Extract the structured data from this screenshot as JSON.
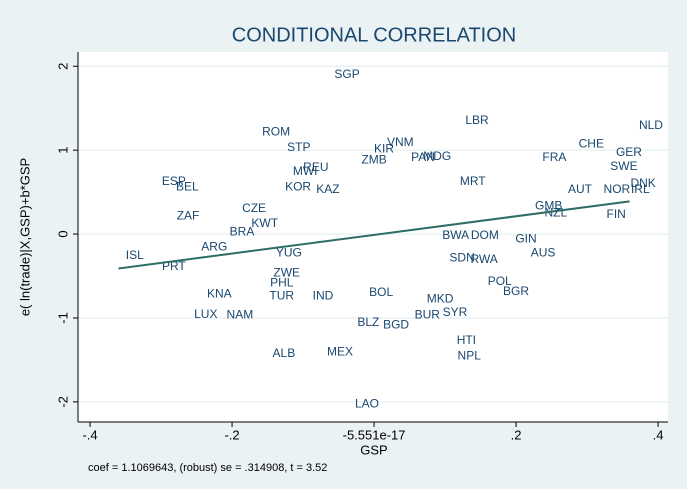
{
  "chart_data": {
    "type": "scatter",
    "title": "CONDITIONAL CORRELATION",
    "x_label": "GSP",
    "y_label": "e( ln(trade)|X,GSP)+b*GSP",
    "note": "coef = 1.1069643, (robust) se = .314908, t = 3.52",
    "xlim": [
      -0.417,
      0.414
    ],
    "ylim": [
      -2.24,
      2.17
    ],
    "xticks": [
      {
        "value": -0.4,
        "label": "-.4"
      },
      {
        "value": -0.2,
        "label": "-.2"
      },
      {
        "value": -5.551e-17,
        "label": "-5.551e-17"
      },
      {
        "value": 0.2,
        "label": ".2"
      },
      {
        "value": 0.4,
        "label": ".4"
      }
    ],
    "yticks": [
      2,
      1,
      0,
      -1,
      -2
    ],
    "grid": true,
    "color": "#1a476f",
    "labels": [
      "SGP",
      "LBR",
      "NLD",
      "ROM",
      "VNM",
      "CHE",
      "STP",
      "KIR",
      "GER",
      "PAN",
      "MDG",
      "FRA",
      "ZMB",
      "REU",
      "MWI",
      "SWE",
      "ESP",
      "BEL",
      "KOR",
      "KAZ",
      "MRT",
      "AUT",
      "NOR",
      "IRL",
      "DNK",
      "GMB",
      "NZL",
      "FIN",
      "CZE",
      "ZAF",
      "KWT",
      "BRA",
      "GIN",
      "ARG",
      "AUS",
      "ISL",
      "PRT",
      "YUG",
      "ZWE",
      "PHL",
      "IND",
      "KNA",
      "TUR",
      "LUX",
      "NAM",
      "BOL",
      "BGR",
      "MKD",
      "BUR",
      "SYR",
      "BLZ",
      "BGD",
      "HTI",
      "NPL",
      "ALB",
      "MEX",
      "LAO",
      "POL",
      "SDN",
      "RWA",
      "BWA",
      "DOM"
    ],
    "x": [
      -0.038,
      0.145,
      0.39,
      -0.138,
      0.037,
      0.306,
      -0.106,
      0.014,
      0.359,
      0.069,
      0.089,
      0.254,
      0.0,
      -0.082,
      -0.097,
      0.352,
      -0.282,
      -0.263,
      -0.107,
      -0.065,
      0.139,
      0.29,
      0.342,
      0.375,
      0.379,
      0.246,
      0.256,
      0.341,
      -0.169,
      -0.262,
      -0.154,
      -0.186,
      0.214,
      -0.225,
      0.238,
      -0.337,
      -0.282,
      -0.12,
      -0.123,
      -0.13,
      -0.072,
      -0.218,
      -0.13,
      -0.237,
      -0.189,
      0.01,
      0.2,
      0.093,
      0.075,
      0.114,
      -0.008,
      0.031,
      0.13,
      0.134,
      -0.127,
      -0.048,
      -0.01,
      0.177,
      0.124,
      0.155,
      0.115,
      0.156
    ],
    "values": [
      1.9,
      1.35,
      1.29,
      1.21,
      1.09,
      1.07,
      1.03,
      1.01,
      0.97,
      0.91,
      0.92,
      0.91,
      0.88,
      0.79,
      0.74,
      0.8,
      0.62,
      0.56,
      0.56,
      0.53,
      0.62,
      0.53,
      0.53,
      0.53,
      0.6,
      0.33,
      0.25,
      0.23,
      0.3,
      0.21,
      0.12,
      0.02,
      -0.06,
      -0.16,
      -0.23,
      -0.26,
      -0.39,
      -0.23,
      -0.47,
      -0.59,
      -0.74,
      -0.72,
      -0.74,
      -0.96,
      -0.97,
      -0.7,
      -0.69,
      -0.78,
      -0.97,
      -0.94,
      -1.06,
      -1.09,
      -1.27,
      -1.46,
      -1.43,
      -1.41,
      -2.03,
      -0.57,
      -0.29,
      -0.31,
      -0.02,
      -0.02
    ],
    "fit": {
      "x": [
        -0.36,
        0.36
      ],
      "values": [
        -0.41,
        0.39
      ],
      "color": "#2d6d66"
    }
  }
}
